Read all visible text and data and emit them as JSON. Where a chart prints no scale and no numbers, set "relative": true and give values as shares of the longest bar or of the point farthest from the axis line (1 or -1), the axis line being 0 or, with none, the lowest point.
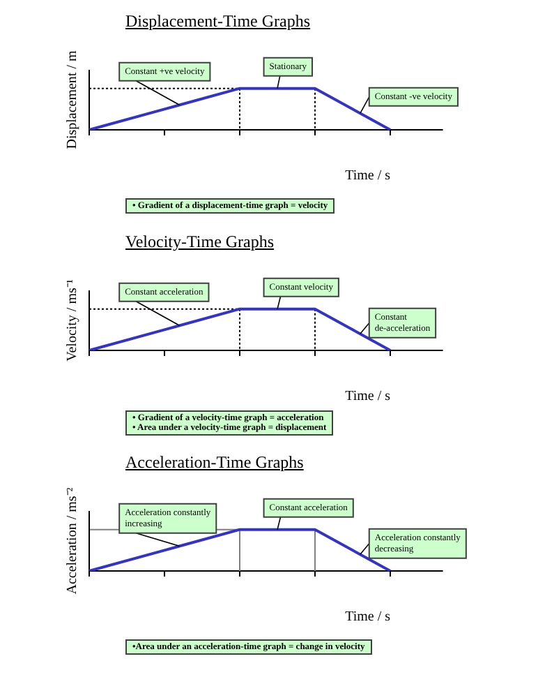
{
  "chart_data": [
    {
      "type": "line",
      "title": "Displacement-Time Graphs",
      "xlabel": "Time / s",
      "ylabel": "Displacement / m",
      "relative": true,
      "categories": [
        null,
        null,
        null,
        null,
        null
      ],
      "series": [
        {
          "color": "#3333cc",
          "values": [
            0,
            0.5,
            1,
            1,
            0
          ]
        }
      ],
      "marker": "none",
      "line_style": "solid",
      "ref_lines": [
        {
          "axis": "y",
          "value": 1,
          "color": "#000000",
          "line_style": "dotted"
        }
      ],
      "annotations": [
        "Constant +ve velocity",
        "Stationary",
        "Constant -ve velocity",
        "• Gradient of a displacement-time graph = velocity"
      ]
    },
    {
      "type": "line",
      "title": "Velocity-Time Graphs",
      "xlabel": "Time / s",
      "ylabel": "Velocity / ms⁻¹",
      "relative": true,
      "categories": [
        null,
        null,
        null,
        null,
        null
      ],
      "series": [
        {
          "color": "#3333cc",
          "values": [
            0,
            0.5,
            1,
            1,
            0
          ]
        }
      ],
      "marker": "none",
      "line_style": "solid",
      "ref_lines": [
        {
          "axis": "y",
          "value": 1,
          "color": "#000000",
          "line_style": "dotted"
        }
      ],
      "annotations": [
        "Constant acceleration",
        "Constant velocity",
        "Constant de-acceleration",
        "• Gradient of a velocity-time graph = acceleration",
        "• Area under a velocity-time graph = displacement"
      ]
    },
    {
      "type": "line",
      "title": "Acceleration-Time Graphs",
      "xlabel": "Time / s",
      "ylabel": "Acceleration / ms⁻²",
      "relative": true,
      "categories": [
        null,
        null,
        null,
        null,
        null
      ],
      "series": [
        {
          "color": "#3333cc",
          "values": [
            0,
            0.5,
            1,
            1,
            0
          ]
        }
      ],
      "marker": "none",
      "line_style": "solid",
      "ref_lines": [
        {
          "axis": "y",
          "value": 1,
          "color": "#808080",
          "line_style": "solid"
        }
      ],
      "annotations": [
        "Acceleration constantly increasing",
        "Constant acceleration",
        "Acceleration constantly decreasing",
        "•Area under an acceleration-time graph = change in velocity"
      ]
    }
  ]
}
